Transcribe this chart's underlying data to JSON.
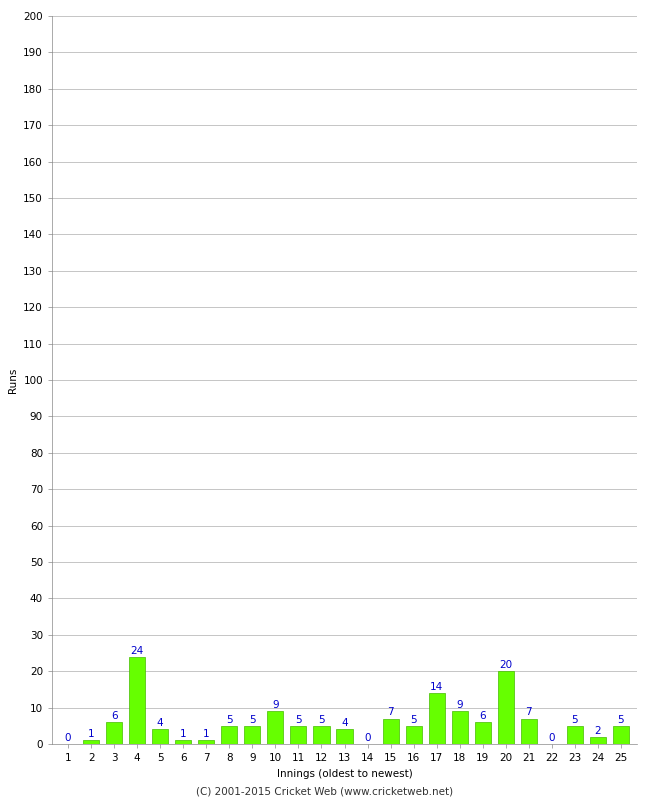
{
  "innings": [
    1,
    2,
    3,
    4,
    5,
    6,
    7,
    8,
    9,
    10,
    11,
    12,
    13,
    14,
    15,
    16,
    17,
    18,
    19,
    20,
    21,
    22,
    23,
    24,
    25
  ],
  "runs": [
    0,
    1,
    6,
    24,
    4,
    1,
    1,
    5,
    5,
    9,
    5,
    5,
    4,
    0,
    7,
    5,
    14,
    9,
    6,
    20,
    7,
    0,
    5,
    2,
    5
  ],
  "bar_color": "#66ff00",
  "bar_edge_color": "#44bb00",
  "label_color": "#0000cc",
  "background_color": "#ffffff",
  "grid_color": "#bbbbbb",
  "ylabel": "Runs",
  "xlabel": "Innings (oldest to newest)",
  "ylim": [
    0,
    200
  ],
  "yticks": [
    0,
    10,
    20,
    30,
    40,
    50,
    60,
    70,
    80,
    90,
    100,
    110,
    120,
    130,
    140,
    150,
    160,
    170,
    180,
    190,
    200
  ],
  "footer": "(C) 2001-2015 Cricket Web (www.cricketweb.net)",
  "label_fontsize": 7.5,
  "axis_fontsize": 7.5,
  "ylabel_fontsize": 7.5,
  "footer_fontsize": 7.5
}
